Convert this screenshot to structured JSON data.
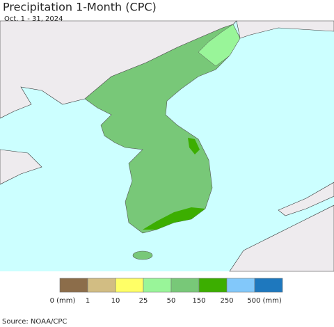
{
  "header": {
    "title": "Precipitation 1-Month (CPC)",
    "subtitle": "Oct. 1 - 31, 2024"
  },
  "legend": {
    "colors": [
      "#8c6d4a",
      "#d2bd83",
      "#ffff66",
      "#99f599",
      "#78c878",
      "#3cae00",
      "#82c8fa",
      "#1e78be"
    ],
    "labels": [
      "0 (mm)",
      "1",
      "10",
      "25",
      "50",
      "150",
      "250",
      "500 (mm)"
    ]
  },
  "footer": {
    "source": "Source: NOAA/CPC"
  }
}
